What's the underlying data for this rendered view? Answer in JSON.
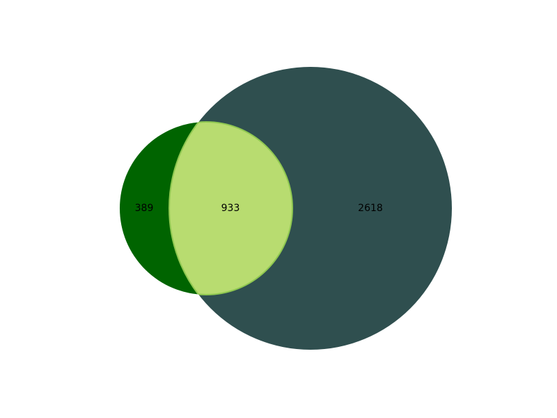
{
  "chart_data": {
    "type": "venn",
    "sets": [
      {
        "id": "A",
        "size": 1322,
        "color": "#006400"
      },
      {
        "id": "B",
        "size": 3551,
        "color": "#2f4f4f"
      }
    ],
    "regions": [
      {
        "id": "A_only",
        "sets": [
          "A"
        ],
        "value": 389,
        "label": "389"
      },
      {
        "id": "A_and_B",
        "sets": [
          "A",
          "B"
        ],
        "value": 933,
        "label": "933",
        "color": "#b8dc70"
      },
      {
        "id": "B_only",
        "sets": [
          "B"
        ],
        "value": 2618,
        "label": "2618"
      }
    ],
    "title": "",
    "legend": "none"
  }
}
